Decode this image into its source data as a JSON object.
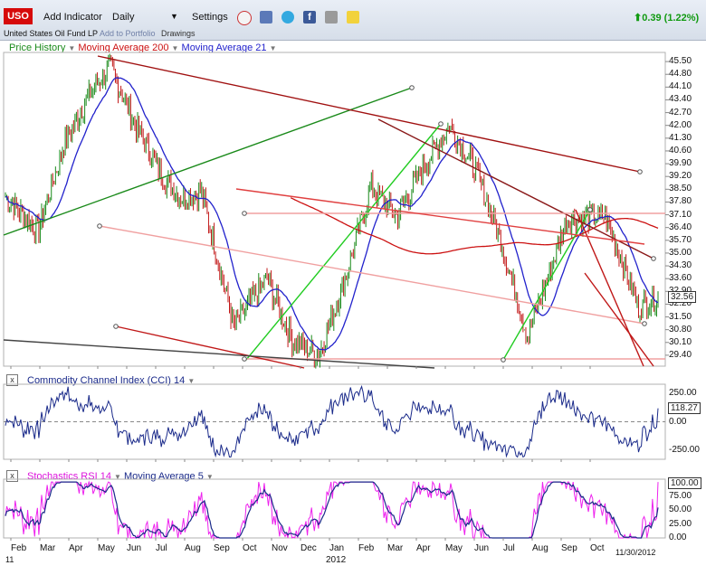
{
  "toolbar": {
    "ticker": "USO",
    "add_indicator": "Add Indicator",
    "interval": "Daily",
    "settings": "Settings",
    "fund_name": "United States Oil Fund LP",
    "add_to_portfolio": "Add to Portfolio",
    "drawings": "Drawings",
    "change": "0.39 (1.22%)",
    "icons": [
      "alarm-clock-icon",
      "bookmark-icon",
      "twitter-icon",
      "facebook-icon",
      "camera-icon",
      "note-icon"
    ],
    "colors": {
      "ticker_bg": "#d60a0a",
      "change": "#119a11"
    }
  },
  "chart_data": [
    {
      "type": "line",
      "panel": "price",
      "legend": [
        {
          "name": "Price History",
          "color": "#1a8a1a"
        },
        {
          "name": "Moving Average 200",
          "color": "#cc1111"
        },
        {
          "name": "Moving Average 21",
          "color": "#2222cc"
        }
      ],
      "y_ticks": [
        "45.50",
        "44.80",
        "44.10",
        "43.40",
        "42.70",
        "42.00",
        "41.30",
        "40.60",
        "39.90",
        "39.20",
        "38.50",
        "37.80",
        "37.10",
        "36.40",
        "35.70",
        "35.00",
        "34.30",
        "33.60",
        "32.90",
        "32.20",
        "31.50",
        "30.80",
        "30.10",
        "29.40"
      ],
      "ylim": [
        28.8,
        46.0
      ],
      "last_value": "32.56",
      "x_ticks": [
        "Feb",
        "Mar",
        "Apr",
        "May",
        "Jun",
        "Jul",
        "Aug",
        "Sep",
        "Oct",
        "Nov",
        "Dec",
        "Jan",
        "Feb",
        "Mar",
        "Apr",
        "May",
        "Jun",
        "Jul",
        "Aug",
        "Sep",
        "Oct"
      ],
      "x_sub": [
        "11",
        "2012"
      ],
      "date_label": "11/30/2012",
      "key_points": {
        "x": [
          0,
          5,
          9,
          13,
          16,
          20,
          24,
          27,
          30,
          35,
          40,
          44,
          48,
          52,
          56,
          60,
          64,
          68,
          72,
          76,
          80,
          86,
          92,
          97,
          100
        ],
        "y": [
          38.1,
          36.2,
          41.0,
          43.8,
          45.2,
          42.0,
          39.2,
          38.0,
          38.4,
          31.0,
          33.6,
          30.2,
          29.4,
          33.5,
          38.6,
          37.0,
          39.7,
          42.0,
          39.6,
          35.6,
          30.4,
          36.8,
          37.0,
          32.0,
          32.56
        ]
      }
    },
    {
      "type": "line",
      "panel": "cci",
      "title": "Commodity Channel Index (CCI) 14",
      "y_ticks": [
        "250.00",
        "0.00",
        "-250.00"
      ],
      "ylim": [
        -330,
        330
      ],
      "last_value": "118.27"
    },
    {
      "type": "line",
      "panel": "stoch",
      "title": "Stochastics RSI 14",
      "ma_title": "Moving Average 5",
      "y_ticks": [
        "75.00",
        "50.00",
        "25.00",
        "0.00"
      ],
      "ylim": [
        0,
        105
      ],
      "last_value": "100.00"
    }
  ]
}
